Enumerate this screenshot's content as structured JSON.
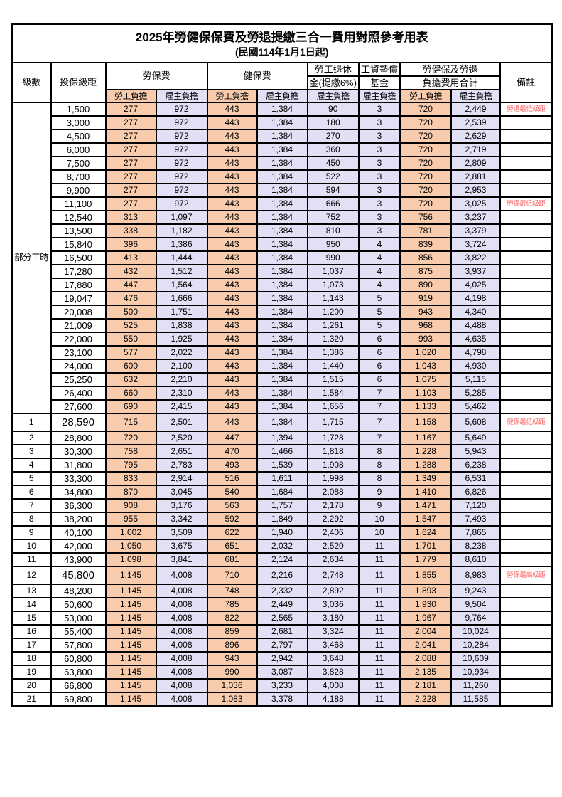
{
  "title": "2025年勞健保保費及勞退提繳三合一費用對照參考用表",
  "subtitle": "(民國114年1月1日起)",
  "colors": {
    "employee_bg": "#F8CBAD",
    "employer_bg": "#E2E0F4",
    "red_text": "#FF4D4D",
    "note_red": "#FF6666",
    "border": "#000000"
  },
  "header": {
    "level": "級數",
    "bracket": "投保級距",
    "labor_fee": "勞保費",
    "health_fee": "健保費",
    "pension_line1": "勞工退休",
    "pension_line2": "金(提繳6%)",
    "wage_fund_line1": "工資墊償",
    "wage_fund_line2": "基金",
    "total_line1": "勞健保及勞退",
    "total_line2": "負擔費用合計",
    "note": "備註",
    "employee_share": "勞工負擔",
    "employer_share": "雇主負擔"
  },
  "group": {
    "label": "部分工時",
    "span": 23
  },
  "rows": [
    {
      "level": null,
      "bracket": "1,500",
      "v": [
        "277",
        "972",
        "443",
        "1,384",
        "90",
        "3",
        "720",
        "2,449"
      ],
      "note": "勞退最低級距",
      "red": true,
      "emphasis": false
    },
    {
      "level": null,
      "bracket": "3,000",
      "v": [
        "277",
        "972",
        "443",
        "1,384",
        "180",
        "3",
        "720",
        "2,539"
      ],
      "note": "",
      "red": false,
      "emphasis": false
    },
    {
      "level": null,
      "bracket": "4,500",
      "v": [
        "277",
        "972",
        "443",
        "1,384",
        "270",
        "3",
        "720",
        "2,629"
      ],
      "note": "",
      "red": false,
      "emphasis": false
    },
    {
      "level": null,
      "bracket": "6,000",
      "v": [
        "277",
        "972",
        "443",
        "1,384",
        "360",
        "3",
        "720",
        "2,719"
      ],
      "note": "",
      "red": false,
      "emphasis": false
    },
    {
      "level": null,
      "bracket": "7,500",
      "v": [
        "277",
        "972",
        "443",
        "1,384",
        "450",
        "3",
        "720",
        "2,809"
      ],
      "note": "",
      "red": false,
      "emphasis": false
    },
    {
      "level": null,
      "bracket": "8,700",
      "v": [
        "277",
        "972",
        "443",
        "1,384",
        "522",
        "3",
        "720",
        "2,881"
      ],
      "note": "",
      "red": false,
      "emphasis": false
    },
    {
      "level": null,
      "bracket": "9,900",
      "v": [
        "277",
        "972",
        "443",
        "1,384",
        "594",
        "3",
        "720",
        "2,953"
      ],
      "note": "",
      "red": false,
      "emphasis": false
    },
    {
      "level": null,
      "bracket": "11,100",
      "v": [
        "277",
        "972",
        "443",
        "1,384",
        "666",
        "3",
        "720",
        "3,025"
      ],
      "note": "勞保最低級距",
      "red": true,
      "emphasis": false
    },
    {
      "level": null,
      "bracket": "12,540",
      "v": [
        "313",
        "1,097",
        "443",
        "1,384",
        "752",
        "3",
        "756",
        "3,237"
      ],
      "note": "",
      "red": false,
      "emphasis": false
    },
    {
      "level": null,
      "bracket": "13,500",
      "v": [
        "338",
        "1,182",
        "443",
        "1,384",
        "810",
        "3",
        "781",
        "3,379"
      ],
      "note": "",
      "red": false,
      "emphasis": false
    },
    {
      "level": null,
      "bracket": "15,840",
      "v": [
        "396",
        "1,386",
        "443",
        "1,384",
        "950",
        "4",
        "839",
        "3,724"
      ],
      "note": "",
      "red": false,
      "emphasis": false
    },
    {
      "level": null,
      "bracket": "16,500",
      "v": [
        "413",
        "1,444",
        "443",
        "1,384",
        "990",
        "4",
        "856",
        "3,822"
      ],
      "note": "",
      "red": false,
      "emphasis": false
    },
    {
      "level": null,
      "bracket": "17,280",
      "v": [
        "432",
        "1,512",
        "443",
        "1,384",
        "1,037",
        "4",
        "875",
        "3,937"
      ],
      "note": "",
      "red": false,
      "emphasis": false
    },
    {
      "level": null,
      "bracket": "17,880",
      "v": [
        "447",
        "1,564",
        "443",
        "1,384",
        "1,073",
        "4",
        "890",
        "4,025"
      ],
      "note": "",
      "red": false,
      "emphasis": false
    },
    {
      "level": null,
      "bracket": "19,047",
      "v": [
        "476",
        "1,666",
        "443",
        "1,384",
        "1,143",
        "5",
        "919",
        "4,198"
      ],
      "note": "",
      "red": false,
      "emphasis": false
    },
    {
      "level": null,
      "bracket": "20,008",
      "v": [
        "500",
        "1,751",
        "443",
        "1,384",
        "1,200",
        "5",
        "943",
        "4,340"
      ],
      "note": "",
      "red": false,
      "emphasis": false
    },
    {
      "level": null,
      "bracket": "21,009",
      "v": [
        "525",
        "1,838",
        "443",
        "1,384",
        "1,261",
        "5",
        "968",
        "4,488"
      ],
      "note": "",
      "red": false,
      "emphasis": false
    },
    {
      "level": null,
      "bracket": "22,000",
      "v": [
        "550",
        "1,925",
        "443",
        "1,384",
        "1,320",
        "6",
        "993",
        "4,635"
      ],
      "note": "",
      "red": false,
      "emphasis": false
    },
    {
      "level": null,
      "bracket": "23,100",
      "v": [
        "577",
        "2,022",
        "443",
        "1,384",
        "1,386",
        "6",
        "1,020",
        "4,798"
      ],
      "note": "",
      "red": false,
      "emphasis": false
    },
    {
      "level": null,
      "bracket": "24,000",
      "v": [
        "600",
        "2,100",
        "443",
        "1,384",
        "1,440",
        "6",
        "1,043",
        "4,930"
      ],
      "note": "",
      "red": false,
      "emphasis": false
    },
    {
      "level": null,
      "bracket": "25,250",
      "v": [
        "632",
        "2,210",
        "443",
        "1,384",
        "1,515",
        "6",
        "1,075",
        "5,115"
      ],
      "note": "",
      "red": false,
      "emphasis": false
    },
    {
      "level": null,
      "bracket": "26,400",
      "v": [
        "660",
        "2,310",
        "443",
        "1,384",
        "1,584",
        "7",
        "1,103",
        "5,285"
      ],
      "note": "",
      "red": false,
      "emphasis": false
    },
    {
      "level": null,
      "bracket": "27,600",
      "v": [
        "690",
        "2,415",
        "443",
        "1,384",
        "1,656",
        "7",
        "1,133",
        "5,462"
      ],
      "note": "",
      "red": false,
      "emphasis": false
    },
    {
      "level": "1",
      "bracket": "28,590",
      "v": [
        "715",
        "2,501",
        "443",
        "1,384",
        "1,715",
        "7",
        "1,158",
        "5,608"
      ],
      "note": "健保最低級距",
      "red": true,
      "emphasis": true
    },
    {
      "level": "2",
      "bracket": "28,800",
      "v": [
        "720",
        "2,520",
        "447",
        "1,394",
        "1,728",
        "7",
        "1,167",
        "5,649"
      ],
      "note": "",
      "red": false,
      "emphasis": false
    },
    {
      "level": "3",
      "bracket": "30,300",
      "v": [
        "758",
        "2,651",
        "470",
        "1,466",
        "1,818",
        "8",
        "1,228",
        "5,943"
      ],
      "note": "",
      "red": false,
      "emphasis": false
    },
    {
      "level": "4",
      "bracket": "31,800",
      "v": [
        "795",
        "2,783",
        "493",
        "1,539",
        "1,908",
        "8",
        "1,288",
        "6,238"
      ],
      "note": "",
      "red": false,
      "emphasis": false
    },
    {
      "level": "5",
      "bracket": "33,300",
      "v": [
        "833",
        "2,914",
        "516",
        "1,611",
        "1,998",
        "8",
        "1,349",
        "6,531"
      ],
      "note": "",
      "red": false,
      "emphasis": false
    },
    {
      "level": "6",
      "bracket": "34,800",
      "v": [
        "870",
        "3,045",
        "540",
        "1,684",
        "2,088",
        "9",
        "1,410",
        "6,826"
      ],
      "note": "",
      "red": false,
      "emphasis": false
    },
    {
      "level": "7",
      "bracket": "36,300",
      "v": [
        "908",
        "3,176",
        "563",
        "1,757",
        "2,178",
        "9",
        "1,471",
        "7,120"
      ],
      "note": "",
      "red": false,
      "emphasis": false
    },
    {
      "level": "8",
      "bracket": "38,200",
      "v": [
        "955",
        "3,342",
        "592",
        "1,849",
        "2,292",
        "10",
        "1,547",
        "7,493"
      ],
      "note": "",
      "red": false,
      "emphasis": false
    },
    {
      "level": "9",
      "bracket": "40,100",
      "v": [
        "1,002",
        "3,509",
        "622",
        "1,940",
        "2,406",
        "10",
        "1,624",
        "7,865"
      ],
      "note": "",
      "red": false,
      "emphasis": false
    },
    {
      "level": "10",
      "bracket": "42,000",
      "v": [
        "1,050",
        "3,675",
        "651",
        "2,032",
        "2,520",
        "11",
        "1,701",
        "8,238"
      ],
      "note": "",
      "red": false,
      "emphasis": false
    },
    {
      "level": "11",
      "bracket": "43,900",
      "v": [
        "1,098",
        "3,841",
        "681",
        "2,124",
        "2,634",
        "11",
        "1,779",
        "8,610"
      ],
      "note": "",
      "red": false,
      "emphasis": false
    },
    {
      "level": "12",
      "bracket": "45,800",
      "v": [
        "1,145",
        "4,008",
        "710",
        "2,216",
        "2,748",
        "11",
        "1,855",
        "8,983"
      ],
      "note": "勞保最高級距",
      "red": true,
      "emphasis": true
    },
    {
      "level": "13",
      "bracket": "48,200",
      "v": [
        "1,145",
        "4,008",
        "748",
        "2,332",
        "2,892",
        "11",
        "1,893",
        "9,243"
      ],
      "note": "",
      "red": false,
      "emphasis": false
    },
    {
      "level": "14",
      "bracket": "50,600",
      "v": [
        "1,145",
        "4,008",
        "785",
        "2,449",
        "3,036",
        "11",
        "1,930",
        "9,504"
      ],
      "note": "",
      "red": false,
      "emphasis": false
    },
    {
      "level": "15",
      "bracket": "53,000",
      "v": [
        "1,145",
        "4,008",
        "822",
        "2,565",
        "3,180",
        "11",
        "1,967",
        "9,764"
      ],
      "note": "",
      "red": false,
      "emphasis": false
    },
    {
      "level": "16",
      "bracket": "55,400",
      "v": [
        "1,145",
        "4,008",
        "859",
        "2,681",
        "3,324",
        "11",
        "2,004",
        "10,024"
      ],
      "note": "",
      "red": false,
      "emphasis": false
    },
    {
      "level": "17",
      "bracket": "57,800",
      "v": [
        "1,145",
        "4,008",
        "896",
        "2,797",
        "3,468",
        "11",
        "2,041",
        "10,284"
      ],
      "note": "",
      "red": false,
      "emphasis": false
    },
    {
      "level": "18",
      "bracket": "60,800",
      "v": [
        "1,145",
        "4,008",
        "943",
        "2,942",
        "3,648",
        "11",
        "2,088",
        "10,609"
      ],
      "note": "",
      "red": false,
      "emphasis": false
    },
    {
      "level": "19",
      "bracket": "63,800",
      "v": [
        "1,145",
        "4,008",
        "990",
        "3,087",
        "3,828",
        "11",
        "2,135",
        "10,934"
      ],
      "note": "",
      "red": false,
      "emphasis": false
    },
    {
      "level": "20",
      "bracket": "66,800",
      "v": [
        "1,145",
        "4,008",
        "1,036",
        "3,233",
        "4,008",
        "11",
        "2,181",
        "11,260"
      ],
      "note": "",
      "red": false,
      "emphasis": false
    },
    {
      "level": "21",
      "bracket": "69,800",
      "v": [
        "1,145",
        "4,008",
        "1,083",
        "3,378",
        "4,188",
        "11",
        "2,228",
        "11,585"
      ],
      "note": "",
      "red": false,
      "emphasis": false
    }
  ]
}
